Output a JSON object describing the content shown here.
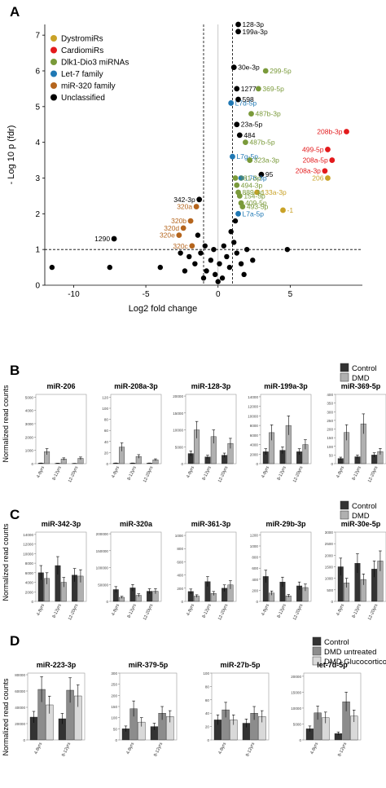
{
  "panels": {
    "A": {
      "letter": "A",
      "xlabel": "Log2 fold change",
      "ylabel": "- Log 10 p (fdr)",
      "xticks": [
        "-10",
        "-5",
        "0",
        "5"
      ],
      "yticks": [
        "0",
        "1",
        "2",
        "3",
        "4",
        "5",
        "6",
        "7"
      ],
      "legend": [
        {
          "label": "DystromiRs",
          "color": "#c9a227"
        },
        {
          "label": "CardiomiRs",
          "color": "#e31a1c"
        },
        {
          "label": "Dlk1-Dio3 miRNAs",
          "color": "#7a9a3a"
        },
        {
          "label": "Let-7 family",
          "color": "#1f78b4"
        },
        {
          "label": "miR-320 family",
          "color": "#b5651d"
        },
        {
          "label": "Unclassified",
          "color": "#000000"
        }
      ]
    },
    "B": {
      "letter": "B",
      "ylabel": "Normalized read counts",
      "legend": [
        {
          "label": "Control",
          "color": "#333333"
        },
        {
          "label": "DMD",
          "color": "#b0b0b0"
        }
      ],
      "groups": [
        "4-8yrs",
        "8-12yrs",
        "12-20yrs"
      ]
    },
    "C": {
      "letter": "C",
      "ylabel": "Normalized read counts",
      "legend": [
        {
          "label": "Control",
          "color": "#333333"
        },
        {
          "label": "DMD",
          "color": "#b0b0b0"
        }
      ],
      "groups": [
        "4-8yrs",
        "8-12yrs",
        "12-20yrs"
      ]
    },
    "D": {
      "letter": "D",
      "ylabel": "Normalized read counts",
      "legend": [
        {
          "label": "Control",
          "color": "#333333"
        },
        {
          "label": "DMD untreated",
          "color": "#8c8c8c"
        },
        {
          "label": "DMD Glucocorticoid",
          "color": "#d9d9d9"
        }
      ],
      "groups": [
        "4-8yrs",
        "8-12yrs"
      ]
    }
  },
  "chart_data": [
    {
      "type": "scatter",
      "panel": "A",
      "xlabel": "Log2 fold change",
      "ylabel": "- Log 10 p (fdr)",
      "xlim": [
        -12,
        10
      ],
      "ylim": [
        0,
        7.3
      ],
      "threshold_lines": {
        "x": [
          -1,
          1
        ],
        "y": 1
      },
      "labeled_points": [
        {
          "label": "128-3p",
          "x": 1.4,
          "y": 7.3,
          "category": "Unclassified"
        },
        {
          "label": "199a-3p",
          "x": 1.4,
          "y": 7.1,
          "category": "Unclassified"
        },
        {
          "label": "30e-3p",
          "x": 1.1,
          "y": 6.1,
          "category": "Unclassified"
        },
        {
          "label": "299-5p",
          "x": 3.3,
          "y": 6.0,
          "category": "Dlk1-Dio3 miRNAs"
        },
        {
          "label": "1277",
          "x": 1.3,
          "y": 5.5,
          "category": "Unclassified"
        },
        {
          "label": "369-5p",
          "x": 2.8,
          "y": 5.5,
          "category": "Dlk1-Dio3 miRNAs"
        },
        {
          "label": "598",
          "x": 1.4,
          "y": 5.2,
          "category": "Unclassified"
        },
        {
          "label": "L7d-5p",
          "x": 0.9,
          "y": 5.1,
          "category": "Let-7 family"
        },
        {
          "label": "487b-3p",
          "x": 2.3,
          "y": 4.8,
          "category": "Dlk1-Dio3 miRNAs"
        },
        {
          "label": "23a-5p",
          "x": 1.3,
          "y": 4.5,
          "category": "Unclassified"
        },
        {
          "label": "208b-3p",
          "x": 8.9,
          "y": 4.3,
          "category": "CardiomiRs"
        },
        {
          "label": "484",
          "x": 1.5,
          "y": 4.2,
          "category": "Unclassified"
        },
        {
          "label": "487b-5p",
          "x": 1.9,
          "y": 4.0,
          "category": "Dlk1-Dio3 miRNAs"
        },
        {
          "label": "499-5p",
          "x": 7.6,
          "y": 3.8,
          "category": "CardiomiRs"
        },
        {
          "label": "L7g-5p",
          "x": 1.0,
          "y": 3.6,
          "category": "Let-7 family"
        },
        {
          "label": "323a-3p",
          "x": 2.2,
          "y": 3.5,
          "category": "Dlk1-Dio3 miRNAs"
        },
        {
          "label": "208a-5p",
          "x": 7.9,
          "y": 3.5,
          "category": "CardiomiRs"
        },
        {
          "label": "208a-3p",
          "x": 7.4,
          "y": 3.2,
          "category": "CardiomiRs"
        },
        {
          "label": "95",
          "x": 3.0,
          "y": 3.1,
          "category": "Unclassified"
        },
        {
          "label": "206",
          "x": 7.6,
          "y": 3.0,
          "category": "DystromiRs"
        },
        {
          "label": "L7b-3p",
          "x": 1.6,
          "y": 3.0,
          "category": "Let-7 family"
        },
        {
          "label": "133a-3p",
          "x": 2.7,
          "y": 2.6,
          "category": "DystromiRs"
        },
        {
          "label": "-1",
          "x": 4.5,
          "y": 2.1,
          "category": "DystromiRs"
        },
        {
          "label": "L7a-5p",
          "x": 1.4,
          "y": 2.0,
          "category": "Let-7 family"
        },
        {
          "label": "342-3p",
          "x": -1.3,
          "y": 2.4,
          "category": "Unclassified"
        },
        {
          "label": "320a",
          "x": -1.5,
          "y": 2.2,
          "category": "miR-320 family"
        },
        {
          "label": "320b",
          "x": -1.9,
          "y": 1.8,
          "category": "miR-320 family"
        },
        {
          "label": "320d",
          "x": -2.4,
          "y": 1.6,
          "category": "miR-320 family"
        },
        {
          "label": "320e",
          "x": -2.7,
          "y": 1.4,
          "category": "miR-320 family"
        },
        {
          "label": "320c",
          "x": -1.8,
          "y": 1.1,
          "category": "miR-320 family"
        },
        {
          "label": "1290",
          "x": -7.2,
          "y": 1.3,
          "category": "Unclassified"
        },
        {
          "label": "381-3p",
          "x": 1.2,
          "y": 3.0,
          "category": "Dlk1-Dio3 miRNAs"
        },
        {
          "label": "494-3p",
          "x": 1.3,
          "y": 2.8,
          "category": "Dlk1-Dio3 miRNAs"
        },
        {
          "label": "889-3p",
          "x": 1.4,
          "y": 2.6,
          "category": "Dlk1-Dio3 miRNAs"
        },
        {
          "label": "154-5p",
          "x": 1.5,
          "y": 2.5,
          "category": "Dlk1-Dio3 miRNAs"
        },
        {
          "label": "409-5p",
          "x": 1.6,
          "y": 2.3,
          "category": "Dlk1-Dio3 miRNAs"
        },
        {
          "label": "493-5p",
          "x": 1.7,
          "y": 2.2,
          "category": "Dlk1-Dio3 miRNAs"
        }
      ],
      "other_points": [
        {
          "x": -11.5,
          "y": 0.5
        },
        {
          "x": -7.5,
          "y": 0.5
        },
        {
          "x": -4.0,
          "y": 0.5
        },
        {
          "x": 4.8,
          "y": 1.0
        },
        {
          "x": -2.0,
          "y": 0.8
        },
        {
          "x": -1.6,
          "y": 0.6
        },
        {
          "x": -1.2,
          "y": 0.9
        },
        {
          "x": -0.8,
          "y": 0.4
        },
        {
          "x": -0.5,
          "y": 0.7
        },
        {
          "x": -0.2,
          "y": 0.3
        },
        {
          "x": 0.1,
          "y": 0.6
        },
        {
          "x": 0.3,
          "y": 0.2
        },
        {
          "x": 0.6,
          "y": 0.8
        },
        {
          "x": 0.8,
          "y": 0.5
        },
        {
          "x": 1.1,
          "y": 1.2
        },
        {
          "x": 1.3,
          "y": 0.9
        },
        {
          "x": 1.6,
          "y": 0.6
        },
        {
          "x": 2.0,
          "y": 1.0
        },
        {
          "x": -1.4,
          "y": 1.4
        },
        {
          "x": -0.9,
          "y": 1.1
        },
        {
          "x": -0.3,
          "y": 1.0
        },
        {
          "x": 0.4,
          "y": 1.1
        },
        {
          "x": 0.9,
          "y": 1.5
        },
        {
          "x": 1.2,
          "y": 1.8
        },
        {
          "x": -2.3,
          "y": 0.4
        },
        {
          "x": -1.0,
          "y": 0.2
        },
        {
          "x": 0.0,
          "y": 0.1
        },
        {
          "x": 1.8,
          "y": 0.3
        },
        {
          "x": -2.6,
          "y": 0.9
        },
        {
          "x": 2.4,
          "y": 0.7
        }
      ]
    },
    {
      "type": "bar",
      "panel": "B",
      "title": "miR-206",
      "yticks": [
        "0",
        "1000",
        "2000",
        "3000",
        "4000",
        "5000"
      ],
      "ylim": [
        0,
        5200
      ],
      "categories": [
        "4-8yrs",
        "8-12yrs",
        "12-20yrs"
      ],
      "series": [
        {
          "name": "Control",
          "values": [
            40,
            30,
            20
          ]
        },
        {
          "name": "DMD",
          "values": [
            900,
            350,
            400
          ]
        }
      ]
    },
    {
      "type": "bar",
      "panel": "B",
      "title": "miR-208a-3p",
      "yticks": [
        "0",
        "20",
        "40",
        "60",
        "80",
        "100",
        "120"
      ],
      "ylim": [
        0,
        125
      ],
      "categories": [
        "4-8yrs",
        "8-12yrs",
        "12-20yrs"
      ],
      "series": [
        {
          "name": "Control",
          "values": [
            1,
            1,
            1
          ]
        },
        {
          "name": "DMD",
          "values": [
            30,
            13,
            7
          ]
        }
      ]
    },
    {
      "type": "bar",
      "panel": "B",
      "title": "miR-128-3p",
      "yticks": [
        "0",
        "5000",
        "10000",
        "15000",
        "20000"
      ],
      "ylim": [
        0,
        20500
      ],
      "categories": [
        "4-8yrs",
        "8-12yrs",
        "12-20yrs"
      ],
      "series": [
        {
          "name": "Control",
          "values": [
            3000,
            2000,
            2500
          ]
        },
        {
          "name": "DMD",
          "values": [
            10000,
            8000,
            6000
          ]
        }
      ]
    },
    {
      "type": "bar",
      "panel": "B",
      "title": "miR-199a-3p",
      "yticks": [
        "0",
        "2000",
        "4000",
        "6000",
        "8000",
        "10000",
        "12000",
        "14000"
      ],
      "ylim": [
        0,
        14500
      ],
      "categories": [
        "4-8yrs",
        "8-12yrs",
        "12-20yrs"
      ],
      "series": [
        {
          "name": "Control",
          "values": [
            2500,
            2800,
            2500
          ]
        },
        {
          "name": "DMD",
          "values": [
            6500,
            8000,
            4000
          ]
        }
      ]
    },
    {
      "type": "bar",
      "panel": "B",
      "title": "miR-369-5p",
      "yticks": [
        "0",
        "50",
        "100",
        "150",
        "200",
        "250",
        "300",
        "350",
        "400"
      ],
      "ylim": [
        0,
        400
      ],
      "categories": [
        "4-8yrs",
        "8-12yrs",
        "12-20yrs"
      ],
      "series": [
        {
          "name": "Control",
          "values": [
            30,
            40,
            50
          ]
        },
        {
          "name": "DMD",
          "values": [
            180,
            230,
            70
          ]
        }
      ]
    },
    {
      "type": "bar",
      "panel": "C",
      "title": "miR-342-3p",
      "yticks": [
        "0",
        "2000",
        "4000",
        "6000",
        "8000",
        "10000",
        "12000",
        "14000"
      ],
      "ylim": [
        0,
        14500
      ],
      "categories": [
        "4-8yrs",
        "8-12yrs",
        "12-20yrs"
      ],
      "series": [
        {
          "name": "Control",
          "values": [
            6000,
            7500,
            5500
          ]
        },
        {
          "name": "DMD",
          "values": [
            4800,
            4000,
            5300
          ]
        }
      ]
    },
    {
      "type": "bar",
      "panel": "C",
      "title": "miR-320a",
      "yticks": [
        "0",
        "50000",
        "100000",
        "150000",
        "200000"
      ],
      "ylim": [
        0,
        205000
      ],
      "categories": [
        "4-8yrs",
        "8-12yrs",
        "12-20yrs"
      ],
      "series": [
        {
          "name": "Control",
          "values": [
            35000,
            40000,
            30000
          ]
        },
        {
          "name": "DMD",
          "values": [
            12000,
            18000,
            30000
          ]
        }
      ]
    },
    {
      "type": "bar",
      "panel": "C",
      "title": "miR-361-3p",
      "yticks": [
        "0",
        "200",
        "400",
        "600",
        "800",
        "1000"
      ],
      "ylim": [
        0,
        1050
      ],
      "categories": [
        "4-8yrs",
        "8-12yrs",
        "12-20yrs"
      ],
      "series": [
        {
          "name": "Control",
          "values": [
            150,
            300,
            200
          ]
        },
        {
          "name": "DMD",
          "values": [
            80,
            120,
            250
          ]
        }
      ]
    },
    {
      "type": "bar",
      "panel": "C",
      "title": "miR-29b-3p",
      "yticks": [
        "0",
        "200",
        "400",
        "600",
        "800",
        "1000",
        "1200"
      ],
      "ylim": [
        0,
        1250
      ],
      "categories": [
        "4-8yrs",
        "8-12yrs",
        "12-20yrs"
      ],
      "series": [
        {
          "name": "Control",
          "values": [
            450,
            350,
            280
          ]
        },
        {
          "name": "DMD",
          "values": [
            150,
            100,
            250
          ]
        }
      ]
    },
    {
      "type": "bar",
      "panel": "C",
      "title": "miR-30e-5p",
      "yticks": [
        "0",
        "500",
        "1000",
        "1500",
        "2000",
        "2500",
        "3000"
      ],
      "ylim": [
        0,
        3000
      ],
      "categories": [
        "4-8yrs",
        "8-12yrs",
        "12-20yrs"
      ],
      "series": [
        {
          "name": "Control",
          "values": [
            1500,
            1650,
            1400
          ]
        },
        {
          "name": "DMD",
          "values": [
            800,
            950,
            1750
          ]
        }
      ]
    },
    {
      "type": "bar",
      "panel": "D",
      "title": "miR-223-3p",
      "yticks": [
        "0",
        "20000",
        "40000",
        "60000",
        "80000"
      ],
      "ylim": [
        0,
        82000
      ],
      "categories": [
        "4-8yrs",
        "8-12yrs"
      ],
      "series": [
        {
          "name": "Control",
          "values": [
            28000,
            26000
          ]
        },
        {
          "name": "DMD untreated",
          "values": [
            62000,
            61000
          ]
        },
        {
          "name": "DMD Glucocorticoid",
          "values": [
            43000,
            54000
          ]
        }
      ]
    },
    {
      "type": "bar",
      "panel": "D",
      "title": "miR-379-5p",
      "yticks": [
        "0",
        "50",
        "100",
        "150",
        "200",
        "250",
        "300"
      ],
      "ylim": [
        0,
        300
      ],
      "categories": [
        "4-8yrs",
        "8-12yrs"
      ],
      "series": [
        {
          "name": "Control",
          "values": [
            50,
            60
          ]
        },
        {
          "name": "DMD untreated",
          "values": [
            140,
            120
          ]
        },
        {
          "name": "DMD Glucocorticoid",
          "values": [
            80,
            105
          ]
        }
      ]
    },
    {
      "type": "bar",
      "panel": "D",
      "title": "miR-27b-5p",
      "yticks": [
        "0",
        "20",
        "40",
        "60",
        "80",
        "100"
      ],
      "ylim": [
        0,
        100
      ],
      "categories": [
        "4-8yrs",
        "8-12yrs"
      ],
      "series": [
        {
          "name": "Control",
          "values": [
            30,
            25
          ]
        },
        {
          "name": "DMD untreated",
          "values": [
            45,
            40
          ]
        },
        {
          "name": "DMD Glucocorticoid",
          "values": [
            30,
            35
          ]
        }
      ]
    },
    {
      "type": "bar",
      "panel": "D",
      "title": "let-7d-5p",
      "yticks": [
        "0",
        "5000",
        "10000",
        "15000",
        "20000"
      ],
      "ylim": [
        0,
        21000
      ],
      "categories": [
        "4-8yrs",
        "8-12yrs"
      ],
      "series": [
        {
          "name": "Control",
          "values": [
            3500,
            2000
          ]
        },
        {
          "name": "DMD untreated",
          "values": [
            8500,
            12000
          ]
        },
        {
          "name": "DMD Glucocorticoid",
          "values": [
            7000,
            7500
          ]
        }
      ]
    }
  ]
}
